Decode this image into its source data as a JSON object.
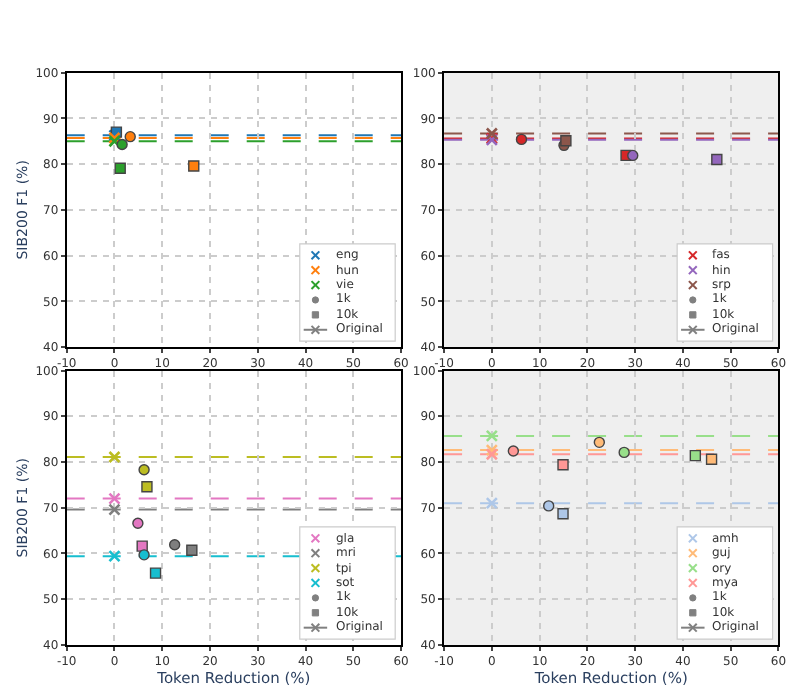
{
  "chart_data": [
    {
      "type": "scatter",
      "ylabel": "SIB200 F1 (%)",
      "xlim": [
        -10,
        60
      ],
      "xticks": [
        -10,
        0,
        10,
        20,
        30,
        40,
        50,
        60
      ],
      "ylim": [
        40,
        100
      ],
      "yticks": [
        40,
        50,
        60,
        70,
        80,
        90,
        100
      ],
      "grid": true,
      "legend": "bottom right",
      "series": [
        {
          "name": "eng",
          "color": "#1f77b4",
          "x": [
            0
          ],
          "values": [
            86.3
          ],
          "marker": "cross"
        },
        {
          "color": "#1f77b4",
          "x": [
            0.4
          ],
          "values": [
            87.0
          ],
          "marker": "square"
        },
        {
          "name": "hun",
          "color": "#ff7f0e",
          "x": [
            0
          ],
          "values": [
            85.7
          ],
          "marker": "cross"
        },
        {
          "color": "#ff7f0e",
          "x": [
            3.3
          ],
          "values": [
            86.0
          ],
          "marker": "circle"
        },
        {
          "color": "#ff7f0e",
          "x": [
            16.6
          ],
          "values": [
            79.6
          ],
          "marker": "square"
        },
        {
          "name": "vie",
          "color": "#2ca02c",
          "x": [
            0
          ],
          "values": [
            85.0
          ],
          "marker": "cross"
        },
        {
          "color": "#2ca02c",
          "x": [
            1.6
          ],
          "values": [
            84.3
          ],
          "marker": "circle"
        },
        {
          "color": "#2ca02c",
          "x": [
            1.2
          ],
          "values": [
            79.1
          ],
          "marker": "square"
        },
        {
          "name": "1k",
          "color": "#808080",
          "marker": "circle"
        },
        {
          "name": "10k",
          "color": "#808080",
          "marker": "square"
        },
        {
          "name": "Original",
          "type": "line",
          "color": "#808080",
          "marker": "cross"
        }
      ],
      "ref_lines": [
        {
          "axis": "y",
          "value": 86.3,
          "color": "#1f77b4",
          "line_style": "dashed"
        },
        {
          "axis": "y",
          "value": 85.7,
          "color": "#ff7f0e",
          "line_style": "dashed"
        },
        {
          "axis": "y",
          "value": 85.0,
          "color": "#2ca02c",
          "line_style": "dashed"
        }
      ]
    },
    {
      "type": "scatter",
      "xlim": [
        -10,
        60
      ],
      "xticks": [
        -10,
        0,
        10,
        20,
        30,
        40,
        50,
        60
      ],
      "ylim": [
        40,
        100
      ],
      "yticks": [
        40,
        50,
        60,
        70,
        80,
        90,
        100
      ],
      "grid": true,
      "legend": "bottom right",
      "series": [
        {
          "name": "fas",
          "color": "#d62728",
          "x": [
            0
          ],
          "values": [
            85.6
          ],
          "marker": "cross"
        },
        {
          "color": "#d62728",
          "x": [
            6.2
          ],
          "values": [
            85.4
          ],
          "marker": "circle"
        },
        {
          "color": "#d62728",
          "x": [
            28.1
          ],
          "values": [
            81.9
          ],
          "marker": "square"
        },
        {
          "name": "hin",
          "color": "#9467bd",
          "x": [
            0
          ],
          "values": [
            85.3
          ],
          "marker": "cross"
        },
        {
          "color": "#9467bd",
          "x": [
            29.5
          ],
          "values": [
            81.9
          ],
          "marker": "circle"
        },
        {
          "color": "#9467bd",
          "x": [
            47.1
          ],
          "values": [
            81.0
          ],
          "marker": "square"
        },
        {
          "name": "srp",
          "color": "#8c564b",
          "x": [
            0
          ],
          "values": [
            86.7
          ],
          "marker": "cross"
        },
        {
          "color": "#8c564b",
          "x": [
            15.1
          ],
          "values": [
            84.1
          ],
          "marker": "circle"
        },
        {
          "color": "#8c564b",
          "x": [
            15.5
          ],
          "values": [
            85.1
          ],
          "marker": "square"
        },
        {
          "name": "1k",
          "color": "#808080",
          "marker": "circle"
        },
        {
          "name": "10k",
          "color": "#808080",
          "marker": "square"
        },
        {
          "name": "Original",
          "type": "line",
          "color": "#808080",
          "marker": "cross"
        }
      ],
      "ref_lines": [
        {
          "axis": "y",
          "value": 85.6,
          "color": "#d62728",
          "line_style": "dashed"
        },
        {
          "axis": "y",
          "value": 85.3,
          "color": "#9467bd",
          "line_style": "dashed"
        },
        {
          "axis": "y",
          "value": 86.7,
          "color": "#8c564b",
          "line_style": "dashed"
        }
      ]
    },
    {
      "type": "scatter",
      "xlabel": "Token Reduction (%)",
      "ylabel": "SIB200 F1 (%)",
      "xlim": [
        -10,
        60
      ],
      "xticks": [
        -10,
        0,
        10,
        20,
        30,
        40,
        50,
        60
      ],
      "ylim": [
        40,
        100
      ],
      "yticks": [
        40,
        50,
        60,
        70,
        80,
        90,
        100
      ],
      "grid": true,
      "legend": "bottom right",
      "series": [
        {
          "name": "gla",
          "color": "#e377c2",
          "x": [
            0
          ],
          "values": [
            72.0
          ],
          "marker": "cross"
        },
        {
          "color": "#e377c2",
          "x": [
            4.9
          ],
          "values": [
            66.6
          ],
          "marker": "circle"
        },
        {
          "color": "#e377c2",
          "x": [
            5.8
          ],
          "values": [
            61.6
          ],
          "marker": "square"
        },
        {
          "name": "mri",
          "color": "#7f7f7f",
          "x": [
            0
          ],
          "values": [
            69.6
          ],
          "marker": "cross"
        },
        {
          "color": "#7f7f7f",
          "x": [
            12.6
          ],
          "values": [
            61.9
          ],
          "marker": "circle"
        },
        {
          "color": "#7f7f7f",
          "x": [
            16.2
          ],
          "values": [
            60.7
          ],
          "marker": "square"
        },
        {
          "name": "tpi",
          "color": "#bcbd22",
          "x": [
            0
          ],
          "values": [
            81.1
          ],
          "marker": "cross"
        },
        {
          "color": "#bcbd22",
          "x": [
            6.2
          ],
          "values": [
            78.3
          ],
          "marker": "circle"
        },
        {
          "color": "#bcbd22",
          "x": [
            6.8
          ],
          "values": [
            74.6
          ],
          "marker": "square"
        },
        {
          "name": "sot",
          "color": "#17becf",
          "x": [
            0
          ],
          "values": [
            59.4
          ],
          "marker": "cross"
        },
        {
          "color": "#17becf",
          "x": [
            6.2
          ],
          "values": [
            59.7
          ],
          "marker": "circle"
        },
        {
          "color": "#17becf",
          "x": [
            8.6
          ],
          "values": [
            55.7
          ],
          "marker": "square"
        },
        {
          "name": "1k",
          "color": "#808080",
          "marker": "circle"
        },
        {
          "name": "10k",
          "color": "#808080",
          "marker": "square"
        },
        {
          "name": "Original",
          "type": "line",
          "color": "#808080",
          "marker": "cross"
        }
      ],
      "ref_lines": [
        {
          "axis": "y",
          "value": 72.0,
          "color": "#e377c2",
          "line_style": "dashed"
        },
        {
          "axis": "y",
          "value": 69.6,
          "color": "#7f7f7f",
          "line_style": "dashed"
        },
        {
          "axis": "y",
          "value": 81.1,
          "color": "#bcbd22",
          "line_style": "dashed"
        },
        {
          "axis": "y",
          "value": 59.4,
          "color": "#17becf",
          "line_style": "dashed"
        }
      ]
    },
    {
      "type": "scatter",
      "xlabel": "Token Reduction (%)",
      "xlim": [
        -10,
        60
      ],
      "xticks": [
        -10,
        0,
        10,
        20,
        30,
        40,
        50,
        60
      ],
      "ylim": [
        40,
        100
      ],
      "yticks": [
        40,
        50,
        60,
        70,
        80,
        90,
        100
      ],
      "grid": true,
      "legend": "bottom right",
      "series": [
        {
          "name": "amh",
          "color": "#aec7e8",
          "x": [
            0
          ],
          "values": [
            71.0
          ],
          "marker": "cross"
        },
        {
          "color": "#aec7e8",
          "x": [
            11.9
          ],
          "values": [
            70.4
          ],
          "marker": "circle"
        },
        {
          "color": "#aec7e8",
          "x": [
            14.9
          ],
          "values": [
            68.7
          ],
          "marker": "square"
        },
        {
          "name": "guj",
          "color": "#ffbb78",
          "x": [
            0
          ],
          "values": [
            82.6
          ],
          "marker": "cross"
        },
        {
          "color": "#ffbb78",
          "x": [
            22.5
          ],
          "values": [
            84.3
          ],
          "marker": "circle"
        },
        {
          "color": "#ffbb78",
          "x": [
            46.0
          ],
          "values": [
            80.6
          ],
          "marker": "square"
        },
        {
          "name": "ory",
          "color": "#98df8a",
          "x": [
            0
          ],
          "values": [
            85.7
          ],
          "marker": "cross"
        },
        {
          "color": "#98df8a",
          "x": [
            27.7
          ],
          "values": [
            82.1
          ],
          "marker": "circle"
        },
        {
          "color": "#98df8a",
          "x": [
            42.6
          ],
          "values": [
            81.4
          ],
          "marker": "square"
        },
        {
          "name": "mya",
          "color": "#ff9896",
          "x": [
            0
          ],
          "values": [
            81.7
          ],
          "marker": "cross"
        },
        {
          "color": "#ff9896",
          "x": [
            4.5
          ],
          "values": [
            82.4
          ],
          "marker": "circle"
        },
        {
          "color": "#ff9896",
          "x": [
            14.9
          ],
          "values": [
            79.4
          ],
          "marker": "square"
        },
        {
          "name": "1k",
          "color": "#808080",
          "marker": "circle"
        },
        {
          "name": "10k",
          "color": "#808080",
          "marker": "square"
        },
        {
          "name": "Original",
          "type": "line",
          "color": "#808080",
          "marker": "cross"
        }
      ],
      "ref_lines": [
        {
          "axis": "y",
          "value": 71.0,
          "color": "#aec7e8",
          "line_style": "dashed"
        },
        {
          "axis": "y",
          "value": 82.6,
          "color": "#ffbb78",
          "line_style": "dashed"
        },
        {
          "axis": "y",
          "value": 85.7,
          "color": "#98df8a",
          "line_style": "dashed"
        },
        {
          "axis": "y",
          "value": 81.7,
          "color": "#ff9896",
          "line_style": "dashed"
        }
      ]
    }
  ]
}
